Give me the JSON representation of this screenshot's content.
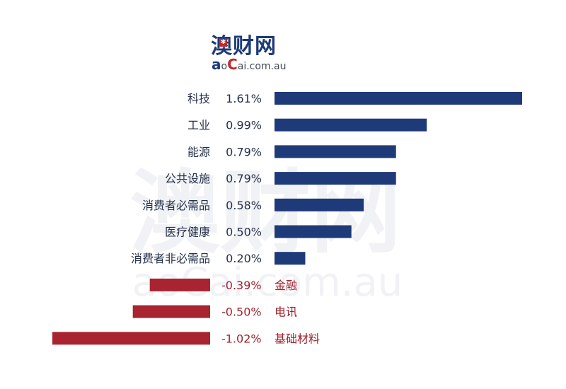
{
  "logo": {
    "cn_text": "澳财网",
    "en_text": "aoCai.com.au",
    "en_a": "a",
    "en_o": "o",
    "en_C": "C",
    "en_rest": "ai.com.au"
  },
  "watermark": {
    "cn_text": "澳财网",
    "en_text": "aoCai.com.au"
  },
  "colors": {
    "positive": "#1f3a78",
    "negative": "#a82430",
    "text": "#24304a",
    "negative_text": "#a01f2c",
    "watermark": "#f1f2f5"
  },
  "chart_data": {
    "type": "bar",
    "orientation": "horizontal",
    "title": "",
    "xlabel": "",
    "ylabel": "",
    "categories": [
      "科技",
      "工业",
      "能源",
      "公共设施",
      "消费者必需品",
      "医疗健康",
      "消费者非必需品",
      "金融",
      "电讯",
      "基础材料"
    ],
    "values": [
      1.61,
      0.99,
      0.79,
      0.79,
      0.58,
      0.5,
      0.2,
      -0.39,
      -0.5,
      -1.02
    ],
    "value_labels": [
      "1.61%",
      "0.99%",
      "0.79%",
      "0.79%",
      "0.58%",
      "0.50%",
      "0.20%",
      "-0.39%",
      "-0.50%",
      "-1.02%"
    ],
    "unit": "%",
    "grid": false,
    "legend": "none"
  }
}
